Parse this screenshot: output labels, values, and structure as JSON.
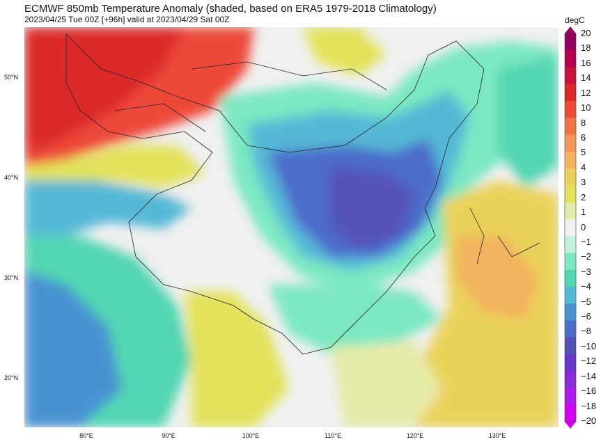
{
  "header": {
    "title": "ECMWF 850mb Temperature Anomaly (shaded, based on ERA5 1979-2018 Climatology)",
    "subtitle": "2023/04/25 Tue 00Z [+96h] valid at 2023/04/29 Sat 00Z"
  },
  "map": {
    "lat_ticks": [
      "50°N",
      "40°N",
      "30°N",
      "20°N"
    ],
    "lon_ticks": [
      "80°E",
      "90°E",
      "100°E",
      "110°E",
      "120°E",
      "130°E"
    ]
  },
  "colorbar": {
    "unit": "degC",
    "labels": [
      "20",
      "18",
      "16",
      "14",
      "12",
      "10",
      "8",
      "6",
      "5",
      "4",
      "3",
      "2",
      "1",
      "0",
      "−1",
      "−2",
      "−3",
      "−4",
      "−5",
      "−6",
      "−8",
      "−10",
      "−12",
      "−14",
      "−16",
      "−18",
      "−20"
    ],
    "colors": [
      "#96005f",
      "#b4004f",
      "#c8143c",
      "#dc2a2a",
      "#ed4a3a",
      "#f0744a",
      "#f2965a",
      "#f2b25e",
      "#ead25a",
      "#e2e25a",
      "#e6eaa8",
      "#f0f0f0",
      "#bff2dc",
      "#7be8c2",
      "#52d6b2",
      "#54b8d6",
      "#4a92d2",
      "#4e6ccc",
      "#5453b8",
      "#6a38c8",
      "#8a2ad8",
      "#b01aea",
      "#d400f2"
    ]
  }
}
